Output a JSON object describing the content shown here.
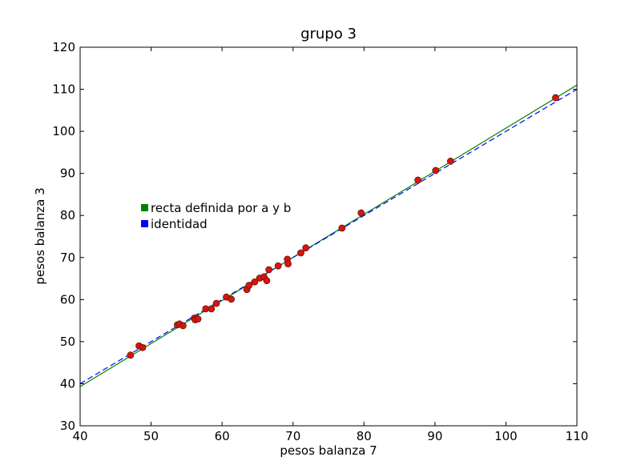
{
  "chart_data": {
    "type": "scatter",
    "title": "grupo 3",
    "xlabel": "pesos balanza 7",
    "ylabel": "pesos balanza 3",
    "xlim": [
      40,
      110
    ],
    "ylim": [
      30,
      120
    ],
    "xticks": [
      "40",
      "50",
      "60",
      "70",
      "80",
      "90",
      "100",
      "110"
    ],
    "yticks": [
      "30",
      "40",
      "50",
      "60",
      "70",
      "80",
      "90",
      "100",
      "110",
      "120"
    ],
    "grid": false,
    "legend_position": "center-left",
    "colors": {
      "points_fill": "#dd1111",
      "points_edge": "#552200",
      "fit_line": "#008000",
      "identity_line": "#0000ff"
    },
    "points": {
      "x": [
        47.1,
        48.3,
        48.8,
        53.7,
        54.0,
        54.5,
        56.1,
        56.2,
        56.6,
        57.7,
        58.5,
        59.2,
        60.6,
        61.3,
        63.5,
        63.8,
        64.6,
        65.3,
        65.9,
        66.3,
        66.6,
        67.9,
        69.2,
        69.3,
        71.1,
        71.8,
        76.9,
        79.6,
        87.6,
        90.1,
        92.2,
        107.0
      ],
      "y": [
        46.8,
        49.0,
        48.6,
        54.0,
        54.2,
        53.8,
        55.6,
        55.2,
        55.4,
        57.8,
        57.8,
        59.1,
        60.6,
        60.1,
        62.4,
        63.4,
        64.2,
        65.1,
        65.4,
        64.5,
        67.1,
        68.0,
        69.6,
        68.5,
        71.1,
        72.3,
        77.0,
        80.6,
        88.4,
        90.7,
        92.9,
        108.0
      ]
    },
    "series": [
      {
        "name": "recta definida por a y b",
        "style": "solid",
        "x": [
          40,
          110
        ],
        "y": [
          39.3,
          111.0
        ]
      },
      {
        "name": "identidad",
        "style": "dashed",
        "x": [
          40,
          110
        ],
        "y": [
          40,
          110
        ]
      }
    ]
  }
}
